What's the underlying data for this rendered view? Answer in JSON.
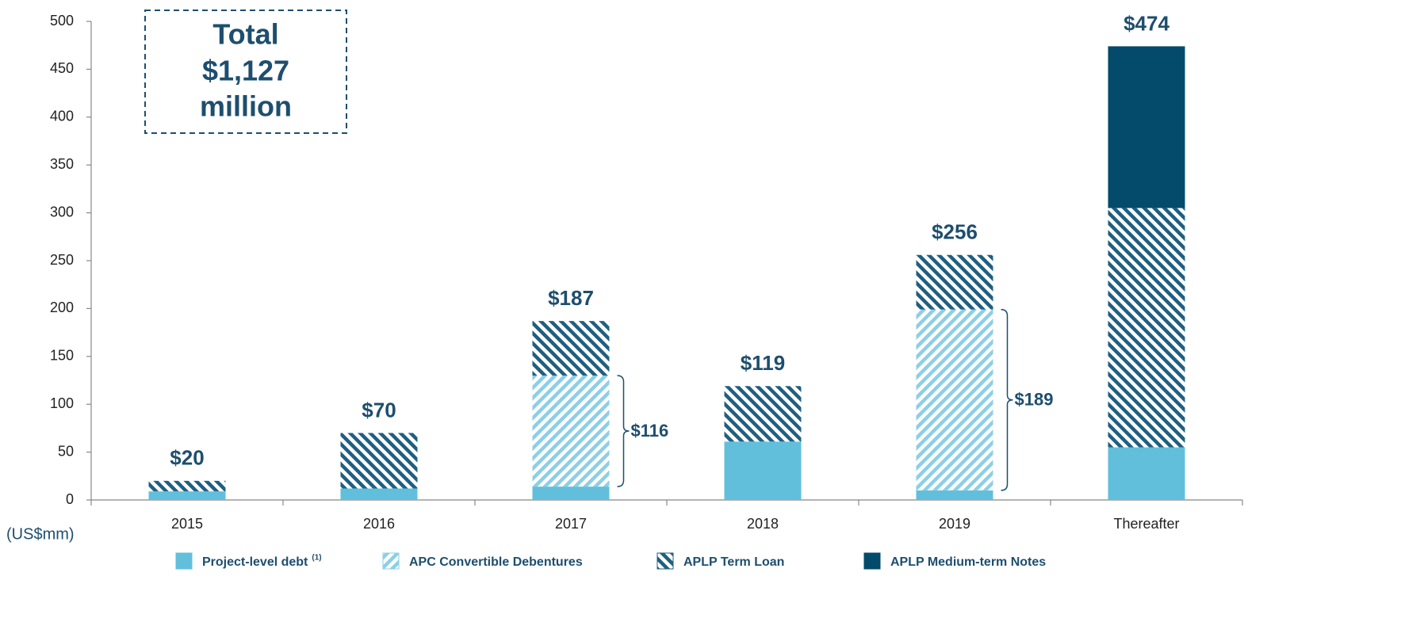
{
  "chart_data": {
    "type": "stacked-bar",
    "categories": [
      "2015",
      "2016",
      "2017",
      "2018",
      "2019",
      "Thereafter"
    ],
    "series": [
      {
        "name": "Project-level debt",
        "footnote_marker": "(1)",
        "color": "#62bfdc",
        "pattern": "solid",
        "values": [
          9,
          12,
          14,
          61,
          10,
          55
        ]
      },
      {
        "name": "APC Convertible Debentures",
        "color": "#8ccfe6",
        "pattern": "hatch-forward",
        "values": [
          0,
          0,
          116,
          0,
          189,
          0
        ],
        "value_labels": [
          null,
          null,
          "$116",
          null,
          "$189",
          null
        ]
      },
      {
        "name": "APLP Term Loan",
        "color": "#1f5f80",
        "pattern": "hatch-back",
        "values": [
          11,
          58,
          57,
          58,
          57,
          250
        ]
      },
      {
        "name": "APLP Medium-term Notes",
        "color": "#034a6b",
        "pattern": "solid",
        "values": [
          0,
          0,
          0,
          0,
          0,
          169
        ]
      }
    ],
    "totals": [
      20,
      70,
      187,
      119,
      256,
      474
    ],
    "total_labels": [
      "$20",
      "$70",
      "$187",
      "$119",
      "$256",
      "$474"
    ],
    "annotation": [
      "Total",
      "$1,127",
      "million"
    ],
    "y_axis_label": "(US$mm)",
    "ylim": [
      0,
      500
    ],
    "yticks": [
      0,
      50,
      100,
      150,
      200,
      250,
      300,
      350,
      400,
      450,
      500
    ],
    "grid": false
  }
}
